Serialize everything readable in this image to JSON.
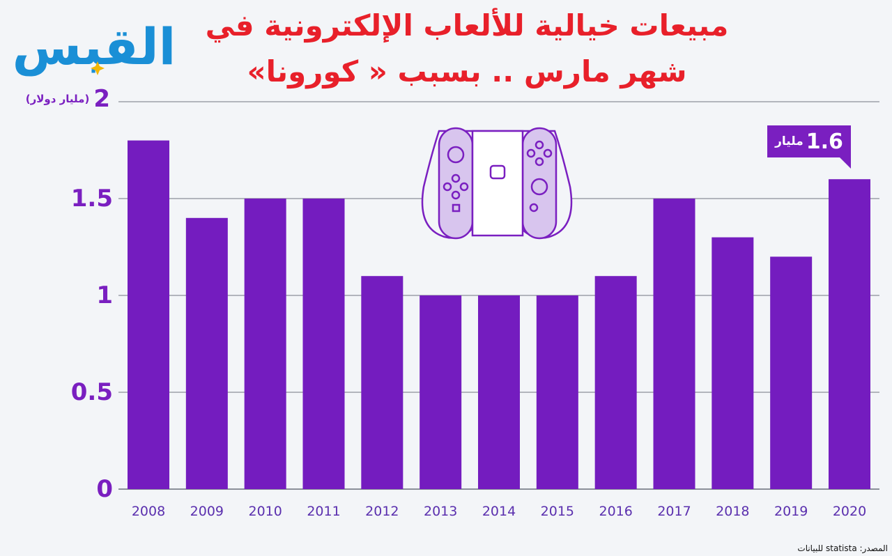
{
  "title": {
    "line1": "مبيعات خيالية للألعاب الإلكترونية في",
    "line2": "شهر مارس .. بسبب « كورونا»"
  },
  "logo": {
    "text": "القبس",
    "color": "#1a8fd6"
  },
  "unit_label": "(مليار دولار)",
  "callout": {
    "value": "1.6",
    "unit": "مليار"
  },
  "source": "المصدر: statista للبيانات",
  "icon": "game-console-icon",
  "colors": {
    "bar": "#741cbf",
    "title": "#e8202a",
    "axis_text": "#7a1fc0",
    "grid": "#8a8f99"
  },
  "chart_data": {
    "type": "bar",
    "categories": [
      "2008",
      "2009",
      "2010",
      "2011",
      "2012",
      "2013",
      "2014",
      "2015",
      "2016",
      "2017",
      "2018",
      "2019",
      "2020"
    ],
    "values": [
      1.8,
      1.4,
      1.5,
      1.5,
      1.1,
      1.0,
      1.0,
      1.0,
      1.1,
      1.5,
      1.3,
      1.2,
      1.6
    ],
    "yticks": [
      "0",
      "0.5",
      "1",
      "1.5",
      "2"
    ],
    "ylim": [
      0,
      2
    ],
    "ylabel": "(مليار دولار)",
    "grid": true
  }
}
